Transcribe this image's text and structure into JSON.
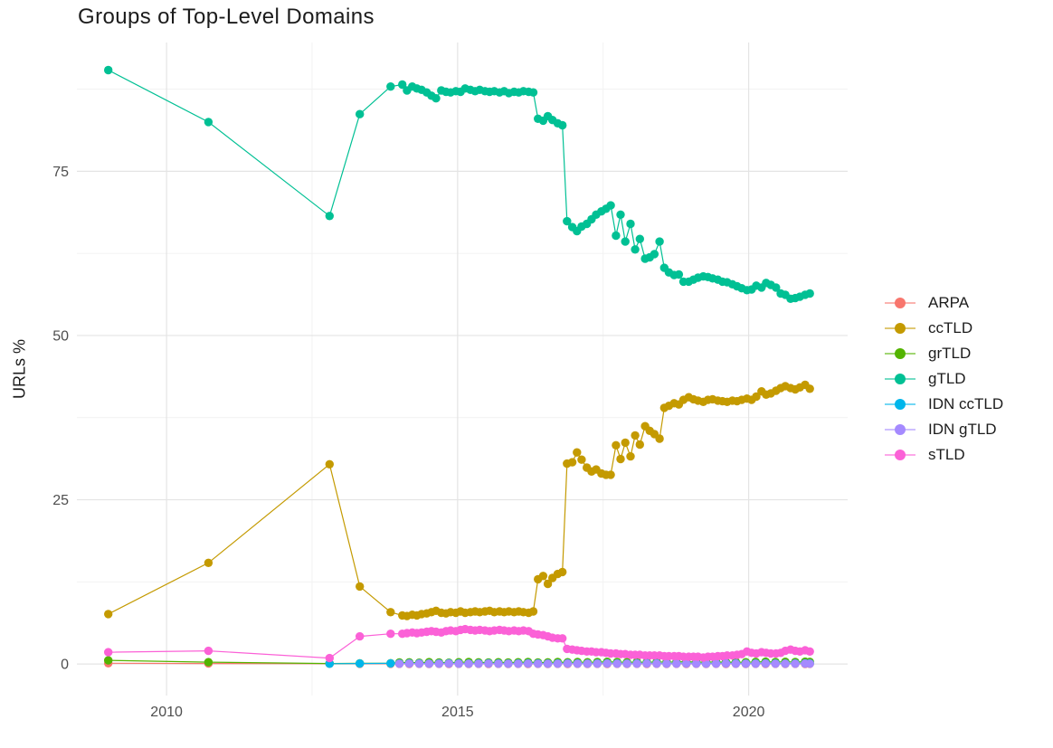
{
  "figure": {
    "title": "Groups of Top-Level Domains",
    "y_axis_label": "URLs %"
  },
  "chart_data": {
    "type": "line",
    "title": "Groups of Top-Level Domains",
    "xlabel": "",
    "ylabel": "URLs %",
    "x_ticks": [
      2010,
      2015,
      2020
    ],
    "x_tick_labels": [
      "2010",
      "2015",
      "2020"
    ],
    "x_minor_ticks": [
      2012.5,
      2017.5
    ],
    "y_ticks": [
      0,
      25,
      50,
      75
    ],
    "y_tick_labels": [
      "0",
      "25",
      "50",
      "75"
    ],
    "y_minor_ticks": [
      12.5,
      37.5,
      62.5,
      87.5
    ],
    "xlim": [
      2008.46,
      2021.7
    ],
    "ylim": [
      -4.8,
      94.6
    ],
    "grid": true,
    "grid_major_color": "#e4e4e4",
    "grid_minor_color": "#f1f1f1",
    "legend_position": "right",
    "marker": "circle",
    "series": [
      {
        "name": "ARPA",
        "color": "#F8766D",
        "x": [
          2009.0,
          2010.72,
          2012.8,
          2013.32,
          2013.85,
          2014.0,
          2014.17,
          2014.34,
          2014.51,
          2014.68,
          2014.85,
          2015.02,
          2015.19,
          2015.36,
          2015.53,
          2015.7,
          2015.87,
          2016.04,
          2016.21,
          2016.38,
          2016.55,
          2016.72,
          2016.89,
          2017.06,
          2017.23,
          2017.4,
          2017.57,
          2017.74,
          2017.91,
          2018.08,
          2018.25,
          2018.42,
          2018.59,
          2018.76,
          2018.93,
          2019.1,
          2019.27,
          2019.44,
          2019.61,
          2019.78,
          2019.95,
          2020.12,
          2020.29,
          2020.46,
          2020.63,
          2020.8,
          2020.97,
          2021.05
        ],
        "y": [
          0.12,
          0.08,
          0.04,
          0.03,
          0.03,
          0.03,
          0.02,
          0.03,
          0.02,
          0.03,
          0.02,
          0.03,
          0.02,
          0.03,
          0.02,
          0.03,
          0.02,
          0.03,
          0.02,
          0.03,
          0.02,
          0.03,
          0.02,
          0.03,
          0.02,
          0.03,
          0.02,
          0.03,
          0.02,
          0.03,
          0.02,
          0.03,
          0.02,
          0.03,
          0.02,
          0.03,
          0.02,
          0.03,
          0.02,
          0.03,
          0.02,
          0.03,
          0.02,
          0.03,
          0.02,
          0.03,
          0.02,
          0.03
        ]
      },
      {
        "name": "ccTLD",
        "color": "#C49A00",
        "x": [
          2009.0,
          2010.72,
          2012.8,
          2013.32,
          2013.85,
          2014.05,
          2014.13,
          2014.22,
          2014.3,
          2014.38,
          2014.47,
          2014.55,
          2014.63,
          2014.72,
          2014.8,
          2014.88,
          2014.97,
          2015.05,
          2015.13,
          2015.22,
          2015.3,
          2015.38,
          2015.47,
          2015.55,
          2015.63,
          2015.72,
          2015.8,
          2015.88,
          2015.97,
          2016.05,
          2016.13,
          2016.22,
          2016.3,
          2016.38,
          2016.47,
          2016.55,
          2016.63,
          2016.72,
          2016.8,
          2016.88,
          2016.97,
          2017.05,
          2017.13,
          2017.22,
          2017.3,
          2017.38,
          2017.47,
          2017.55,
          2017.63,
          2017.72,
          2017.8,
          2017.88,
          2017.97,
          2018.05,
          2018.13,
          2018.22,
          2018.3,
          2018.38,
          2018.47,
          2018.55,
          2018.63,
          2018.72,
          2018.8,
          2018.88,
          2018.97,
          2019.05,
          2019.13,
          2019.22,
          2019.3,
          2019.38,
          2019.47,
          2019.55,
          2019.63,
          2019.72,
          2019.8,
          2019.88,
          2019.97,
          2020.05,
          2020.13,
          2020.22,
          2020.3,
          2020.38,
          2020.47,
          2020.55,
          2020.63,
          2020.72,
          2020.8,
          2020.88,
          2020.97,
          2021.05
        ],
        "y": [
          7.6,
          15.4,
          30.4,
          11.8,
          7.9,
          7.4,
          7.3,
          7.5,
          7.4,
          7.6,
          7.7,
          7.9,
          8.1,
          7.8,
          7.7,
          7.9,
          7.8,
          8.0,
          7.8,
          7.9,
          8.0,
          7.9,
          8.0,
          8.1,
          7.9,
          8.0,
          7.9,
          8.0,
          7.9,
          8.0,
          7.9,
          7.8,
          8.0,
          12.9,
          13.4,
          12.2,
          13.1,
          13.7,
          14.0,
          30.5,
          30.7,
          32.2,
          31.1,
          29.9,
          29.3,
          29.6,
          29.0,
          28.8,
          28.8,
          33.3,
          31.2,
          33.7,
          31.6,
          34.8,
          33.4,
          36.2,
          35.5,
          35.0,
          34.3,
          39.0,
          39.3,
          39.7,
          39.5,
          40.2,
          40.6,
          40.3,
          40.1,
          39.9,
          40.2,
          40.3,
          40.1,
          40.0,
          39.9,
          40.1,
          40.0,
          40.2,
          40.4,
          40.2,
          40.7,
          41.5,
          41.0,
          41.2,
          41.6,
          42.0,
          42.3,
          42.0,
          41.8,
          42.1,
          42.5,
          41.9
        ]
      },
      {
        "name": "grTLD",
        "color": "#53B400",
        "x": [
          2009.0,
          2010.72,
          2012.8,
          2013.32,
          2013.85,
          2014.0,
          2014.17,
          2014.34,
          2014.51,
          2014.68,
          2014.85,
          2015.02,
          2015.19,
          2015.36,
          2015.53,
          2015.7,
          2015.87,
          2016.04,
          2016.21,
          2016.38,
          2016.55,
          2016.72,
          2016.89,
          2017.06,
          2017.23,
          2017.4,
          2017.57,
          2017.74,
          2017.91,
          2018.08,
          2018.25,
          2018.42,
          2018.59,
          2018.76,
          2018.93,
          2019.1,
          2019.27,
          2019.44,
          2019.61,
          2019.78,
          2019.95,
          2020.12,
          2020.29,
          2020.46,
          2020.63,
          2020.8,
          2020.97,
          2021.05
        ],
        "y": [
          0.55,
          0.28,
          0.07,
          0.1,
          0.12,
          0.22,
          0.25,
          0.2,
          0.28,
          0.24,
          0.2,
          0.26,
          0.3,
          0.25,
          0.22,
          0.26,
          0.22,
          0.27,
          0.3,
          0.22,
          0.25,
          0.3,
          0.26,
          0.3,
          0.27,
          0.3,
          0.34,
          0.3,
          0.26,
          0.3,
          0.27,
          0.32,
          0.28,
          0.32,
          0.35,
          0.3,
          0.28,
          0.32,
          0.28,
          0.3,
          0.27,
          0.32,
          0.35,
          0.3,
          0.34,
          0.3,
          0.35,
          0.32
        ]
      },
      {
        "name": "gTLD",
        "color": "#00C094",
        "x": [
          2009.0,
          2010.72,
          2012.8,
          2013.32,
          2013.85,
          2014.05,
          2014.13,
          2014.22,
          2014.3,
          2014.38,
          2014.47,
          2014.55,
          2014.63,
          2014.72,
          2014.8,
          2014.88,
          2014.97,
          2015.05,
          2015.13,
          2015.22,
          2015.3,
          2015.38,
          2015.47,
          2015.55,
          2015.63,
          2015.72,
          2015.8,
          2015.88,
          2015.97,
          2016.05,
          2016.13,
          2016.22,
          2016.3,
          2016.38,
          2016.47,
          2016.55,
          2016.63,
          2016.72,
          2016.8,
          2016.88,
          2016.97,
          2017.05,
          2017.13,
          2017.22,
          2017.3,
          2017.38,
          2017.47,
          2017.55,
          2017.63,
          2017.72,
          2017.8,
          2017.88,
          2017.97,
          2018.05,
          2018.13,
          2018.22,
          2018.3,
          2018.38,
          2018.47,
          2018.55,
          2018.63,
          2018.72,
          2018.8,
          2018.88,
          2018.97,
          2019.05,
          2019.13,
          2019.22,
          2019.3,
          2019.38,
          2019.47,
          2019.55,
          2019.63,
          2019.72,
          2019.8,
          2019.88,
          2019.97,
          2020.05,
          2020.13,
          2020.22,
          2020.3,
          2020.38,
          2020.47,
          2020.55,
          2020.63,
          2020.72,
          2020.8,
          2020.88,
          2020.97,
          2021.05
        ],
        "y": [
          90.4,
          82.5,
          68.2,
          83.7,
          87.9,
          88.2,
          87.3,
          87.9,
          87.6,
          87.4,
          87.0,
          86.5,
          86.1,
          87.3,
          87.1,
          87.0,
          87.2,
          87.1,
          87.6,
          87.4,
          87.2,
          87.4,
          87.2,
          87.1,
          87.2,
          87.0,
          87.2,
          86.9,
          87.1,
          87.0,
          87.2,
          87.1,
          87.0,
          83.0,
          82.7,
          83.4,
          82.8,
          82.3,
          82.0,
          67.4,
          66.5,
          65.9,
          66.6,
          67.0,
          67.7,
          68.4,
          68.9,
          69.3,
          69.8,
          65.2,
          68.4,
          64.3,
          67.0,
          63.1,
          64.7,
          61.7,
          61.9,
          62.4,
          64.3,
          60.3,
          59.6,
          59.2,
          59.3,
          58.2,
          58.2,
          58.5,
          58.8,
          59.0,
          58.9,
          58.7,
          58.5,
          58.2,
          58.1,
          57.8,
          57.5,
          57.2,
          56.9,
          57.0,
          57.6,
          57.3,
          58.0,
          57.7,
          57.3,
          56.4,
          56.2,
          55.6,
          55.7,
          55.9,
          56.2,
          56.4
        ]
      },
      {
        "name": "IDN ccTLD",
        "color": "#00B6EB",
        "x": [
          2012.8,
          2013.32,
          2013.85,
          2014.0,
          2014.17,
          2014.34,
          2014.51,
          2014.68,
          2014.85,
          2015.02,
          2015.19,
          2015.36,
          2015.53,
          2015.7,
          2015.87,
          2016.04,
          2016.21,
          2016.38,
          2016.55,
          2016.72,
          2016.89,
          2017.06,
          2017.23,
          2017.4,
          2017.57,
          2017.74,
          2017.91,
          2018.08,
          2018.25,
          2018.42,
          2018.59,
          2018.76,
          2018.93,
          2019.1,
          2019.27,
          2019.44,
          2019.61,
          2019.78,
          2019.95,
          2020.12,
          2020.29,
          2020.46,
          2020.63,
          2020.8,
          2020.97,
          2021.05
        ],
        "y": [
          0.05,
          0.08,
          0.1,
          0.1,
          0.12,
          0.1,
          0.08,
          0.1,
          0.12,
          0.1,
          0.08,
          0.1,
          0.12,
          0.1,
          0.08,
          0.1,
          0.12,
          0.1,
          0.08,
          0.1,
          0.12,
          0.1,
          0.08,
          0.1,
          0.12,
          0.1,
          0.08,
          0.1,
          0.12,
          0.1,
          0.08,
          0.1,
          0.12,
          0.1,
          0.08,
          0.1,
          0.12,
          0.1,
          0.08,
          0.1,
          0.12,
          0.1,
          0.08,
          0.1,
          0.12,
          0.1
        ]
      },
      {
        "name": "IDN gTLD",
        "color": "#A58AFF",
        "x": [
          2014.0,
          2014.17,
          2014.34,
          2014.51,
          2014.68,
          2014.85,
          2015.02,
          2015.19,
          2015.36,
          2015.53,
          2015.7,
          2015.87,
          2016.04,
          2016.21,
          2016.38,
          2016.55,
          2016.72,
          2016.89,
          2017.06,
          2017.23,
          2017.4,
          2017.57,
          2017.74,
          2017.91,
          2018.08,
          2018.25,
          2018.42,
          2018.59,
          2018.76,
          2018.93,
          2019.1,
          2019.27,
          2019.44,
          2019.61,
          2019.78,
          2019.95,
          2020.12,
          2020.29,
          2020.46,
          2020.63,
          2020.8,
          2020.97,
          2021.05
        ],
        "y": [
          0.05,
          0.06,
          0.05,
          0.04,
          0.05,
          0.06,
          0.05,
          0.04,
          0.05,
          0.06,
          0.05,
          0.04,
          0.05,
          0.06,
          0.05,
          0.04,
          0.05,
          0.06,
          0.05,
          0.04,
          0.05,
          0.06,
          0.05,
          0.04,
          0.05,
          0.06,
          0.05,
          0.04,
          0.05,
          0.06,
          0.05,
          0.04,
          0.05,
          0.06,
          0.05,
          0.04,
          0.05,
          0.06,
          0.05,
          0.04,
          0.05,
          0.06,
          0.05
        ]
      },
      {
        "name": "sTLD",
        "color": "#FB61D7",
        "x": [
          2009.0,
          2010.72,
          2012.8,
          2013.32,
          2013.85,
          2014.05,
          2014.13,
          2014.22,
          2014.3,
          2014.38,
          2014.47,
          2014.55,
          2014.63,
          2014.72,
          2014.8,
          2014.88,
          2014.97,
          2015.05,
          2015.13,
          2015.22,
          2015.3,
          2015.38,
          2015.47,
          2015.55,
          2015.63,
          2015.72,
          2015.8,
          2015.88,
          2015.97,
          2016.05,
          2016.13,
          2016.22,
          2016.3,
          2016.38,
          2016.47,
          2016.55,
          2016.63,
          2016.72,
          2016.8,
          2016.88,
          2016.97,
          2017.05,
          2017.13,
          2017.22,
          2017.3,
          2017.38,
          2017.47,
          2017.55,
          2017.63,
          2017.72,
          2017.8,
          2017.88,
          2017.97,
          2018.05,
          2018.13,
          2018.22,
          2018.3,
          2018.38,
          2018.47,
          2018.55,
          2018.63,
          2018.72,
          2018.8,
          2018.88,
          2018.97,
          2019.05,
          2019.13,
          2019.22,
          2019.3,
          2019.38,
          2019.47,
          2019.55,
          2019.63,
          2019.72,
          2019.8,
          2019.88,
          2019.97,
          2020.05,
          2020.13,
          2020.22,
          2020.3,
          2020.38,
          2020.47,
          2020.55,
          2020.63,
          2020.72,
          2020.8,
          2020.88,
          2020.97,
          2021.05
        ],
        "y": [
          1.8,
          2.0,
          0.9,
          4.2,
          4.6,
          4.6,
          4.7,
          4.8,
          4.7,
          4.8,
          4.9,
          5.0,
          4.9,
          4.8,
          5.0,
          5.1,
          5.0,
          5.2,
          5.3,
          5.2,
          5.1,
          5.2,
          5.1,
          5.0,
          5.1,
          5.2,
          5.1,
          5.0,
          5.1,
          5.0,
          5.1,
          5.0,
          4.6,
          4.5,
          4.4,
          4.2,
          4.0,
          3.9,
          3.9,
          2.3,
          2.2,
          2.1,
          2.0,
          1.9,
          1.9,
          1.8,
          1.8,
          1.7,
          1.6,
          1.6,
          1.5,
          1.5,
          1.4,
          1.4,
          1.4,
          1.3,
          1.3,
          1.3,
          1.3,
          1.2,
          1.2,
          1.2,
          1.2,
          1.1,
          1.1,
          1.1,
          1.1,
          1.0,
          1.1,
          1.1,
          1.2,
          1.2,
          1.3,
          1.3,
          1.4,
          1.5,
          1.9,
          1.7,
          1.6,
          1.8,
          1.7,
          1.6,
          1.6,
          1.7,
          2.0,
          2.2,
          2.0,
          1.9,
          2.1,
          1.9
        ]
      }
    ]
  }
}
